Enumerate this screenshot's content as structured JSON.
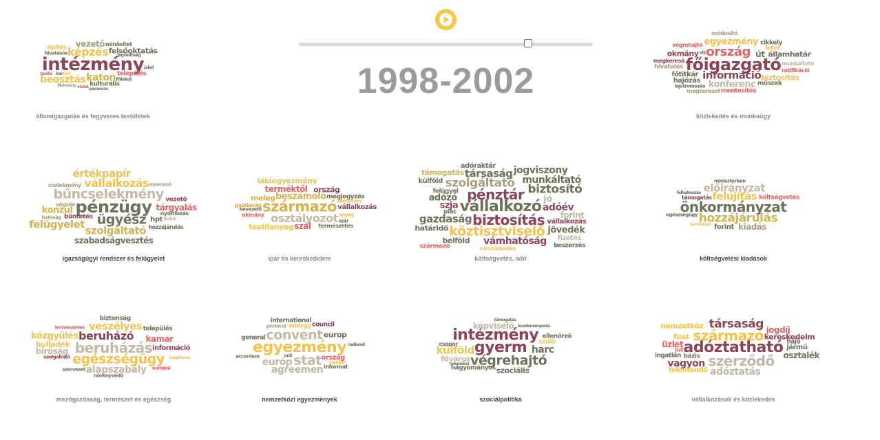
{
  "header": {
    "play_icon": "play-icon",
    "play_color": "#f5c842",
    "year_range": "1998-2002",
    "slider_value": 0.779
  },
  "palette": [
    "#8b4556",
    "#d4b24e",
    "#a8a080",
    "#6e7259",
    "#e06262",
    "#f2c14e",
    "#c4b7a6"
  ],
  "clouds": [
    {
      "title": "államigazgatás és fegyveres testületek",
      "title_color": "#888888",
      "words": [
        {
          "t": "intézmény",
          "s": 26,
          "c": 0
        },
        {
          "t": "katon",
          "s": 14,
          "c": 1
        },
        {
          "t": "kulturális",
          "s": 9,
          "c": 3
        },
        {
          "t": "felsőoktatás",
          "s": 11,
          "c": 3
        },
        {
          "t": "képzés",
          "s": 16,
          "c": 5
        },
        {
          "t": "beosztás",
          "s": 14,
          "c": 5
        },
        {
          "t": "vezető",
          "s": 12,
          "c": 2
        },
        {
          "t": "település",
          "s": 9,
          "c": 4
        },
        {
          "t": "építés",
          "s": 9,
          "c": 5
        },
        {
          "t": "minősítet",
          "s": 8,
          "c": 3
        },
        {
          "t": "hivatásos",
          "s": 7,
          "c": 3
        },
        {
          "t": "főiskol",
          "s": 7,
          "c": 3
        },
        {
          "t": "parancsn",
          "s": 6,
          "c": 3
        },
        {
          "t": "illetmény",
          "s": 6,
          "c": 2
        },
        {
          "t": "jogvédőség",
          "s": 6,
          "c": 3
        },
        {
          "t": "jakol",
          "s": 6,
          "c": 3
        },
        {
          "t": "védet",
          "s": 6,
          "c": 4
        },
        {
          "t": "tanító",
          "s": 6,
          "c": 4
        },
        {
          "t": "kar",
          "s": 6,
          "c": 3
        },
        {
          "t": "terv",
          "s": 6,
          "c": 5
        }
      ]
    },
    {
      "title": "közlekedés és munkaügy",
      "title_color": "#888888",
      "words": [
        {
          "t": "végrehajtó",
          "s": 8,
          "c": 4
        },
        {
          "t": "főigazgató",
          "s": 24,
          "c": 0
        },
        {
          "t": "műszak",
          "s": 9,
          "c": 3
        },
        {
          "t": "lajstromozás",
          "s": 7,
          "c": 3
        },
        {
          "t": "államhatár",
          "s": 11,
          "c": 3
        },
        {
          "t": "mentesítés",
          "s": 9,
          "c": 4
        },
        {
          "t": "viz",
          "s": 7,
          "c": 3
        },
        {
          "t": "konferenc",
          "s": 13,
          "c": 6
        },
        {
          "t": "letét",
          "s": 9,
          "c": 5
        },
        {
          "t": "munkáltató",
          "s": 8,
          "c": 6
        },
        {
          "t": "hivatalos",
          "s": 9,
          "c": 2
        },
        {
          "t": "hajózás",
          "s": 10,
          "c": 3
        },
        {
          "t": "információ",
          "s": 15,
          "c": 0
        },
        {
          "t": "ratifikáció",
          "s": 8,
          "c": 4
        },
        {
          "t": "ország",
          "s": 18,
          "c": 4
        },
        {
          "t": "út",
          "s": 12,
          "c": 3
        },
        {
          "t": "főtitkár",
          "s": 10,
          "c": 3
        },
        {
          "t": "cikkely",
          "s": 9,
          "c": 3
        },
        {
          "t": "biztosítás",
          "s": 11,
          "c": 5
        },
        {
          "t": "okmány",
          "s": 11,
          "c": 0
        },
        {
          "t": "megkereső",
          "s": 8,
          "c": 0
        },
        {
          "t": "módosító",
          "s": 8,
          "c": 2
        },
        {
          "t": "egyezmény",
          "s": 13,
          "c": 5
        },
        {
          "t": "megkereset",
          "s": 8,
          "c": 2
        }
      ]
    },
    {
      "title": "igazságügyi rendszer és felügyelet",
      "title_color": "#444444",
      "words": [
        {
          "t": "szolgáltató",
          "s": 15,
          "c": 1
        },
        {
          "t": "szabadságvesztés",
          "s": 12,
          "c": 3
        },
        {
          "t": "tárgyalás",
          "s": 12,
          "c": 4
        },
        {
          "t": "vállalkozás",
          "s": 16,
          "c": 5
        },
        {
          "t": "konzul",
          "s": 13,
          "c": 1
        },
        {
          "t": "felügyelet",
          "s": 15,
          "c": 1
        },
        {
          "t": "értékpapír",
          "s": 15,
          "c": 5
        },
        {
          "t": "bűncselekmény",
          "s": 19,
          "c": 6
        },
        {
          "t": "pénzügy",
          "s": 24,
          "c": 3
        },
        {
          "t": "ügyész",
          "s": 19,
          "c": 3
        },
        {
          "t": "hozzájárulás",
          "s": 8,
          "c": 3
        },
        {
          "t": "büntetés",
          "s": 9,
          "c": 0
        },
        {
          "t": "vezető",
          "s": 9,
          "c": 0
        },
        {
          "t": "hpt",
          "s": 10,
          "c": 3
        },
        {
          "t": "nyomozás",
          "s": 8,
          "c": 3
        },
        {
          "t": "végzés",
          "s": 8,
          "c": 2
        },
        {
          "t": "cselekmény",
          "s": 8,
          "c": 2
        },
        {
          "t": "hatóság",
          "s": 7,
          "c": 2
        },
        {
          "t": "nyomozó",
          "s": 7,
          "c": 2
        },
        {
          "t": "ítélet",
          "s": 7,
          "c": 6
        }
      ]
    },
    {
      "title": "ipar és kereskedelem",
      "title_color": "#888888",
      "words": [
        {
          "t": "vállalkozás",
          "s": 10,
          "c": 0
        },
        {
          "t": "bevezető",
          "s": 7,
          "c": 3
        },
        {
          "t": "terméktől",
          "s": 12,
          "c": 4
        },
        {
          "t": "származó",
          "s": 21,
          "c": 1
        },
        {
          "t": "megjegyzés",
          "s": 9,
          "c": 3
        },
        {
          "t": "beszámoló",
          "s": 13,
          "c": 1
        },
        {
          "t": "textilanyag",
          "s": 11,
          "c": 5
        },
        {
          "t": "osztályozot",
          "s": 16,
          "c": 6
        },
        {
          "t": "szál",
          "s": 12,
          "c": 4
        },
        {
          "t": "lábiegyezmény",
          "s": 11,
          "c": 5
        },
        {
          "t": "meleg",
          "s": 11,
          "c": 1
        },
        {
          "t": "ország",
          "s": 11,
          "c": 0
        },
        {
          "t": "természetes",
          "s": 8,
          "c": 3
        },
        {
          "t": "gazdaság",
          "s": 8,
          "c": 1
        },
        {
          "t": "okmány",
          "s": 8,
          "c": 4
        },
        {
          "t": "ellenőrzés",
          "s": 7,
          "c": 5
        },
        {
          "t": "anyag",
          "s": 7,
          "c": 5
        },
        {
          "t": "szár",
          "s": 7,
          "c": 3
        }
      ]
    },
    {
      "title": "költségvetés, adó",
      "title_color": "#888888",
      "words": [
        {
          "t": "támogatás",
          "s": 11,
          "c": 1
        },
        {
          "t": "szja",
          "s": 13,
          "c": 0
        },
        {
          "t": "piac",
          "s": 9,
          "c": 3
        },
        {
          "t": "engedélyesvezető",
          "s": 12,
          "c": 6
        },
        {
          "t": "munkáltató",
          "s": 14,
          "c": 3
        },
        {
          "t": "határidő",
          "s": 11,
          "c": 3
        },
        {
          "t": "beszerzés",
          "s": 9,
          "c": 3
        },
        {
          "t": "társaság",
          "s": 15,
          "c": 3
        },
        {
          "t": "zárszámadás",
          "s": 8,
          "c": 5
        },
        {
          "t": "belföld",
          "s": 11,
          "c": 3
        },
        {
          "t": "adóév",
          "s": 14,
          "c": 0
        },
        {
          "t": "adózó",
          "s": 13,
          "c": 3
        },
        {
          "t": "szolgáltató",
          "s": 17,
          "c": 2
        },
        {
          "t": "pénztár",
          "s": 20,
          "c": 0
        },
        {
          "t": "adóraktár",
          "s": 10,
          "c": 3
        },
        {
          "t": "köztisztviselő",
          "s": 19,
          "c": 5
        },
        {
          "t": "gazdaság",
          "s": 15,
          "c": 3
        },
        {
          "t": "vámhatóság",
          "s": 14,
          "c": 0
        },
        {
          "t": "vállalkozó",
          "s": 22,
          "c": 3
        },
        {
          "t": "származó",
          "s": 9,
          "c": 4
        },
        {
          "t": "jövedék",
          "s": 13,
          "c": 3
        },
        {
          "t": "felügyel",
          "s": 9,
          "c": 3
        },
        {
          "t": "adóhatóság",
          "s": 13,
          "c": 4
        },
        {
          "t": "biztosítás",
          "s": 20,
          "c": 0
        },
        {
          "t": "biztosító",
          "s": 17,
          "c": 3
        },
        {
          "t": "jogviszony",
          "s": 14,
          "c": 3
        },
        {
          "t": "forint",
          "s": 12,
          "c": 6
        },
        {
          "t": "vállalkozás",
          "s": 10,
          "c": 0
        },
        {
          "t": "fizetés",
          "s": 10,
          "c": 6
        },
        {
          "t": "külföld",
          "s": 10,
          "c": 3
        },
        {
          "t": "jó",
          "s": 13,
          "c": 6
        }
      ]
    },
    {
      "title": "költségvetési kiadások",
      "title_color": "#444444",
      "words": [
        {
          "t": "felhalmozás",
          "s": 6,
          "c": 3
        },
        {
          "t": "felújítás",
          "s": 15,
          "c": 5
        },
        {
          "t": "támogatás",
          "s": 8,
          "c": 0
        },
        {
          "t": "előirányzat",
          "s": 15,
          "c": 6
        },
        {
          "t": "forint",
          "s": 10,
          "c": 3
        },
        {
          "t": "hozzájárulás",
          "s": 17,
          "c": 1
        },
        {
          "t": "költségvetés",
          "s": 9,
          "c": 4
        },
        {
          "t": "önkormányzat",
          "s": 20,
          "c": 3
        },
        {
          "t": "kiadás",
          "s": 12,
          "c": 2
        },
        {
          "t": "minisztérium",
          "s": 7,
          "c": 3
        },
        {
          "t": "egészségügy",
          "s": 7,
          "c": 3
        },
        {
          "t": "beruházás",
          "s": 6,
          "c": 5
        }
      ]
    },
    {
      "title": "mezőgazdaság, természet és egészség",
      "title_color": "#888888",
      "words": [
        {
          "t": "természetes",
          "s": 7,
          "c": 4
        },
        {
          "t": "szolgáltató",
          "s": 7,
          "c": 0
        },
        {
          "t": "település",
          "s": 9,
          "c": 3
        },
        {
          "t": "kamar",
          "s": 12,
          "c": 4
        },
        {
          "t": "egészségügy",
          "s": 19,
          "c": 5
        },
        {
          "t": "alapszabály",
          "s": 14,
          "c": 6
        },
        {
          "t": "beruházó",
          "s": 16,
          "c": 0
        },
        {
          "t": "hulladék",
          "s": 11,
          "c": 5
        },
        {
          "t": "bíróság",
          "s": 12,
          "c": 6
        },
        {
          "t": "biztonság",
          "s": 9,
          "c": 3
        },
        {
          "t": "veszélyes",
          "s": 15,
          "c": 5
        },
        {
          "t": "beruházás",
          "s": 20,
          "c": 6
        },
        {
          "t": "információ",
          "s": 10,
          "c": 0
        },
        {
          "t": "közgyűlés",
          "s": 13,
          "c": 5
        },
        {
          "t": "növényvédő",
          "s": 7,
          "c": 3
        },
        {
          "t": "tulajdonos",
          "s": 6,
          "c": 5
        },
        {
          "t": "szervezet",
          "s": 7,
          "c": 3
        },
        {
          "t": "európai",
          "s": 7,
          "c": 4
        }
      ]
    },
    {
      "title": "nemzetközi egyezmények",
      "title_color": "#444444",
      "words": [
        {
          "t": "national",
          "s": 6,
          "c": 3
        },
        {
          "t": "ország",
          "s": 10,
          "c": 4
        },
        {
          "t": "protocol",
          "s": 7,
          "c": 2
        },
        {
          "t": "informat",
          "s": 8,
          "c": 3
        },
        {
          "t": "energy",
          "s": 9,
          "c": 5
        },
        {
          "t": "europ",
          "s": 11,
          "c": 3
        },
        {
          "t": "accordanc",
          "s": 7,
          "c": 3
        },
        {
          "t": "egyezmény",
          "s": 22,
          "c": 5
        },
        {
          "t": "convent",
          "s": 19,
          "c": 6
        },
        {
          "t": "agreemen",
          "s": 14,
          "c": 6
        },
        {
          "t": "general",
          "s": 9,
          "c": 3
        },
        {
          "t": "stat",
          "s": 19,
          "c": 6
        },
        {
          "t": "európ",
          "s": 14,
          "c": 6
        },
        {
          "t": "international",
          "s": 9,
          "c": 3
        },
        {
          "t": "council",
          "s": 9,
          "c": 0
        },
        {
          "t": "unit",
          "s": 6,
          "c": 3
        },
        {
          "t": "member",
          "s": 6,
          "c": 5
        }
      ]
    },
    {
      "title": "szociálpolitika",
      "title_color": "#444444",
      "words": [
        {
          "t": "szociális",
          "s": 11,
          "c": 3
        },
        {
          "t": "főváros",
          "s": 11,
          "c": 6
        },
        {
          "t": "szülő",
          "s": 9,
          "c": 5
        },
        {
          "t": "gyerm",
          "s": 22,
          "c": 0
        },
        {
          "t": "külföld",
          "s": 15,
          "c": 5
        },
        {
          "t": "intézmény",
          "s": 22,
          "c": 0
        },
        {
          "t": "hagyományos",
          "s": 9,
          "c": 3
        },
        {
          "t": "képviselő",
          "s": 12,
          "c": 6
        },
        {
          "t": "végrehajtó",
          "s": 19,
          "c": 3
        },
        {
          "t": "harc",
          "s": 14,
          "c": 3
        },
        {
          "t": "ellenőrző",
          "s": 9,
          "c": 3
        },
        {
          "t": "csopor",
          "s": 8,
          "c": 3
        },
        {
          "t": "kezdeményezés",
          "s": 6,
          "c": 3
        },
        {
          "t": "települési",
          "s": 6,
          "c": 3
        },
        {
          "t": "támogatás",
          "s": 6,
          "c": 3
        }
      ]
    },
    {
      "title": "vállalkozások és közlekedés",
      "title_color": "#888888",
      "words": [
        {
          "t": "tekintendő",
          "s": 10,
          "c": 5
        },
        {
          "t": "adóztatás",
          "s": 14,
          "c": 6
        },
        {
          "t": "jogdíj",
          "s": 12,
          "c": 4
        },
        {
          "t": "jut",
          "s": 9,
          "c": 4
        },
        {
          "t": "hajó",
          "s": 9,
          "c": 3
        },
        {
          "t": "adóztatható",
          "s": 22,
          "c": 0
        },
        {
          "t": "nemzetköz",
          "s": 11,
          "c": 5
        },
        {
          "t": "ingatlan",
          "s": 9,
          "c": 3
        },
        {
          "t": "vagyon",
          "s": 14,
          "c": 0
        },
        {
          "t": "származó",
          "s": 20,
          "c": 5
        },
        {
          "t": "szerződő",
          "s": 20,
          "c": 6
        },
        {
          "t": "kereskedelm",
          "s": 11,
          "c": 0
        },
        {
          "t": "osztalék",
          "s": 12,
          "c": 3
        },
        {
          "t": "társaság",
          "s": 17,
          "c": 0
        },
        {
          "t": "fizet",
          "s": 10,
          "c": 5
        },
        {
          "t": "jármű",
          "s": 10,
          "c": 3
        },
        {
          "t": "üzlet",
          "s": 12,
          "c": 4
        },
        {
          "t": "bázis",
          "s": 9,
          "c": 3
        }
      ]
    }
  ]
}
